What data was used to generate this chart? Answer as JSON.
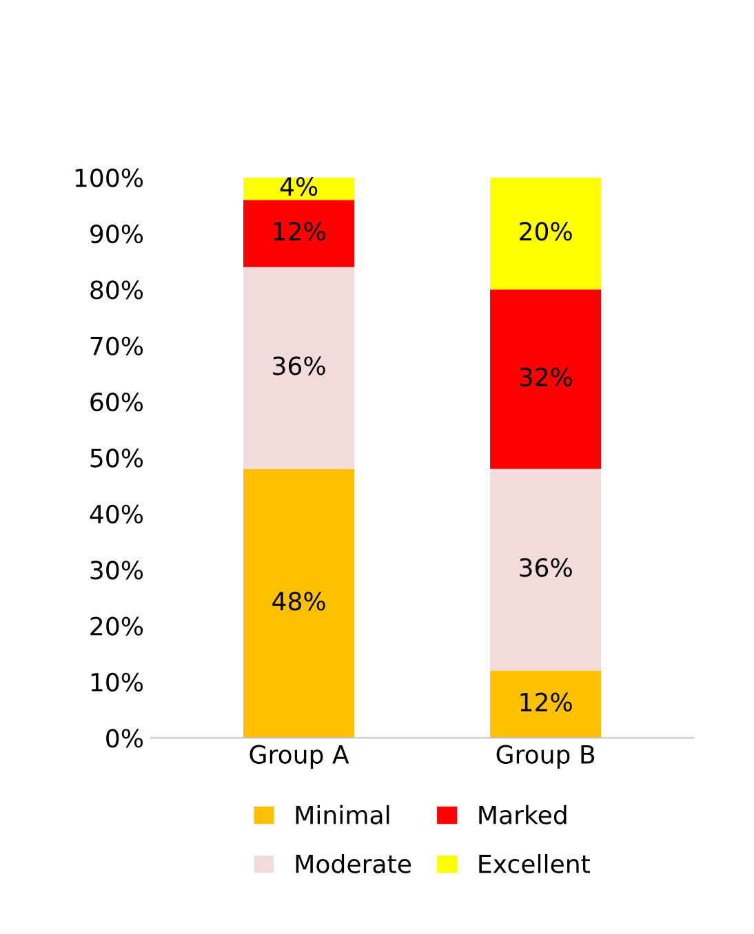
{
  "chart_data": {
    "type": "bar",
    "stacked": true,
    "categories": [
      "Group A",
      "Group B"
    ],
    "series": [
      {
        "name": "Minimal",
        "color": "#ffc000",
        "values": [
          48,
          12
        ],
        "value_labels": [
          "48%",
          "12%"
        ]
      },
      {
        "name": "Moderate",
        "color": "#f2dcdb",
        "values": [
          36,
          36
        ],
        "value_labels": [
          "36%",
          "36%"
        ]
      },
      {
        "name": "Marked",
        "color": "#ff0000",
        "values": [
          12,
          32
        ],
        "value_labels": [
          "12%",
          "32%"
        ]
      },
      {
        "name": "Excellent",
        "color": "#ffff00",
        "values": [
          4,
          20
        ],
        "value_labels": [
          "4%",
          "20%"
        ]
      }
    ],
    "ylim": [
      0,
      100
    ],
    "yticks": [
      {
        "value": 0,
        "label": "0%"
      },
      {
        "value": 10,
        "label": "10%"
      },
      {
        "value": 20,
        "label": "20%"
      },
      {
        "value": 30,
        "label": "30%"
      },
      {
        "value": 40,
        "label": "40%"
      },
      {
        "value": 50,
        "label": "50%"
      },
      {
        "value": 60,
        "label": "60%"
      },
      {
        "value": 70,
        "label": "70%"
      },
      {
        "value": 80,
        "label": "80%"
      },
      {
        "value": 90,
        "label": "90%"
      },
      {
        "value": 100,
        "label": "100%"
      }
    ],
    "grid": false,
    "legend": "bottom"
  }
}
